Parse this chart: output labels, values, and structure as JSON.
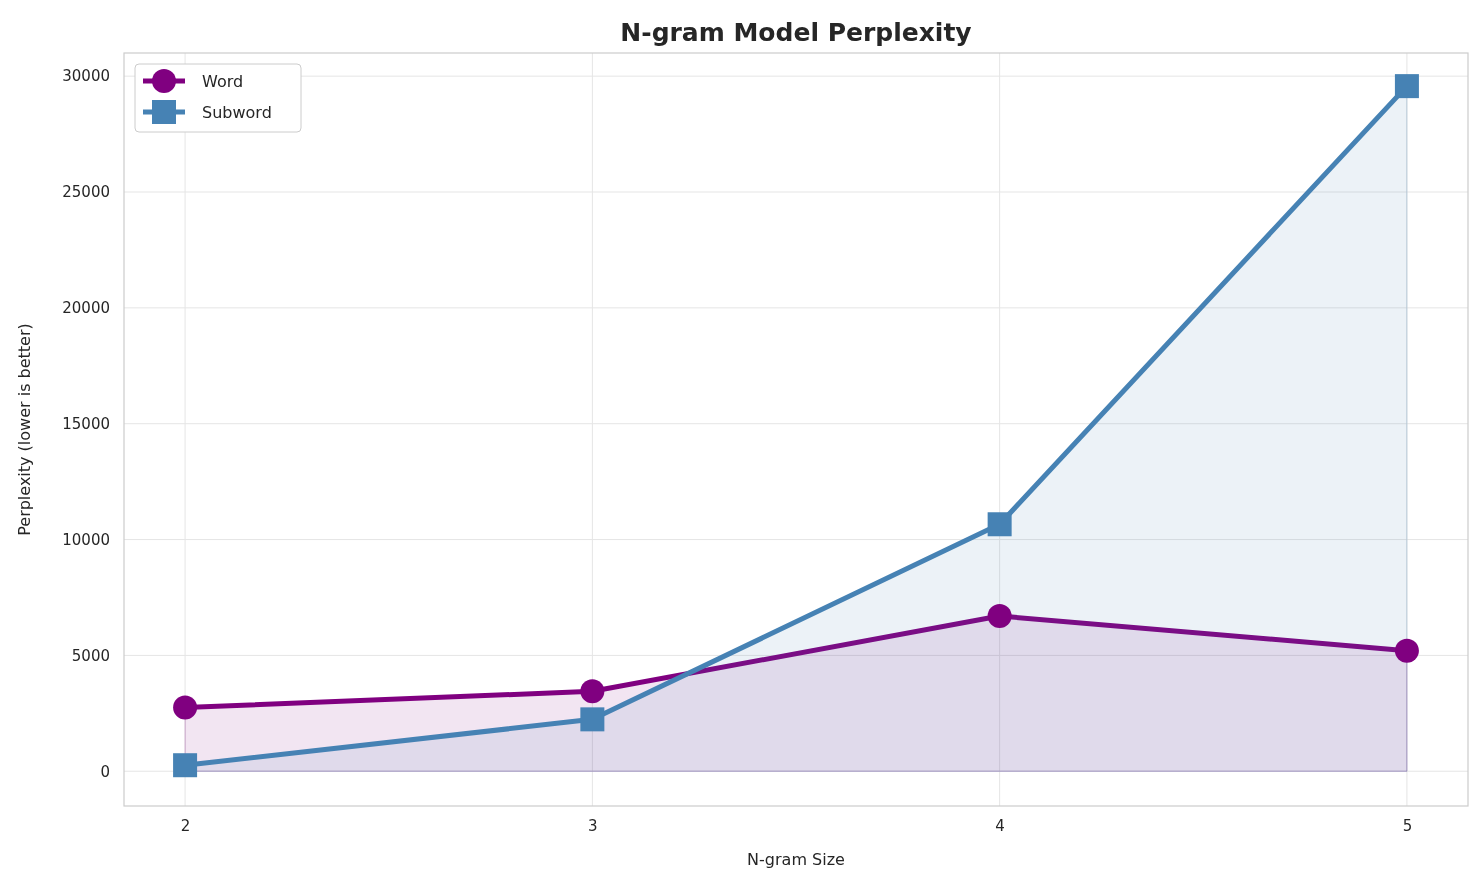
{
  "chart_data": {
    "type": "area",
    "title": "N-gram Model Perplexity",
    "xlabel": "N-gram Size",
    "ylabel": "Perplexity (lower is better)",
    "x": [
      2,
      3,
      4,
      5
    ],
    "series": [
      {
        "name": "Word",
        "color": "#800080",
        "marker": "circle",
        "values": [
          2750,
          3450,
          6700,
          5200
        ]
      },
      {
        "name": "Subword",
        "color": "#4682b4",
        "marker": "square",
        "values": [
          260,
          2240,
          10660,
          29570
        ]
      }
    ],
    "xlim": [
      1.85,
      5.15
    ],
    "xticks": [
      2,
      3,
      4,
      5
    ],
    "ylim": [
      -1500,
      31000
    ],
    "yticks": [
      0,
      5000,
      10000,
      15000,
      20000,
      25000,
      30000
    ],
    "grid": true,
    "legend": "top left",
    "line_style": "solid"
  }
}
